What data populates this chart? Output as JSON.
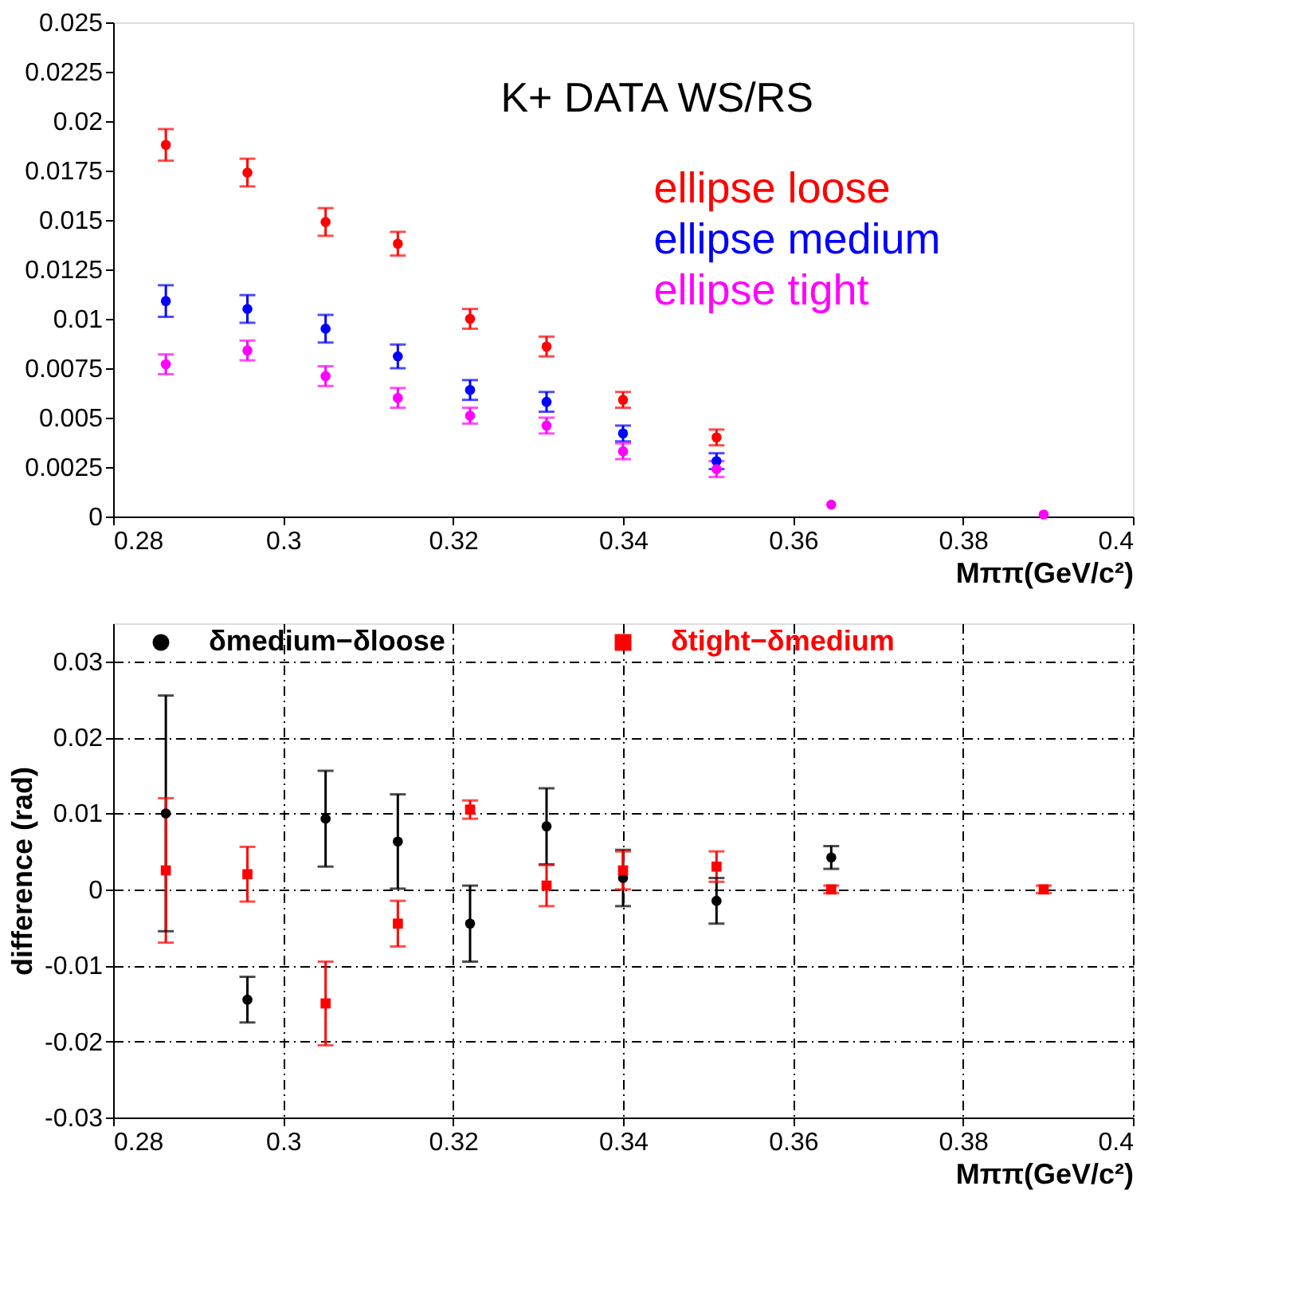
{
  "chart_data": [
    {
      "type": "scatter",
      "annotations": [
        "K+ DATA WS/RS"
      ],
      "xlabel": "Mππ(GeV/c²)",
      "xlim": [
        0.28,
        0.4
      ],
      "xticks": [
        0.28,
        0.3,
        0.32,
        0.34,
        0.36,
        0.38,
        0.4
      ],
      "ylim": [
        0,
        0.025
      ],
      "yticks": [
        0,
        0.0025,
        0.005,
        0.0075,
        0.01,
        0.0125,
        0.015,
        0.0175,
        0.02,
        0.0225,
        0.025
      ],
      "grid": false,
      "legend": "top right",
      "marker": "circle",
      "x": [
        0.2862,
        0.2958,
        0.305,
        0.3135,
        0.322,
        0.331,
        0.34,
        0.351,
        0.3645,
        0.3895
      ],
      "series": [
        {
          "name": "ellipse loose",
          "color": "#ff0000",
          "values": [
            0.0188,
            0.0174,
            0.0149,
            0.0138,
            0.01,
            0.0086,
            0.0059,
            0.004,
            null,
            null
          ],
          "errors": [
            0.0008,
            0.0007,
            0.0007,
            0.0006,
            0.0005,
            0.0005,
            0.0004,
            0.0004,
            null,
            null
          ]
        },
        {
          "name": "ellipse medium",
          "color": "#0000ff",
          "values": [
            0.0109,
            0.0105,
            0.0095,
            0.0081,
            0.0064,
            0.0058,
            0.0042,
            0.0028,
            null,
            null
          ],
          "errors": [
            0.0008,
            0.0007,
            0.0007,
            0.0006,
            0.0005,
            0.0005,
            0.0004,
            0.0004,
            null,
            null
          ]
        },
        {
          "name": "ellipse tight",
          "color": "#ff00ff",
          "values": [
            0.0077,
            0.0084,
            0.0071,
            0.006,
            0.0051,
            0.0046,
            0.0033,
            0.0024,
            0.0006,
            0.0001
          ],
          "errors": [
            0.0005,
            0.0005,
            0.0005,
            0.0005,
            0.0004,
            0.0004,
            0.0004,
            0.0004,
            null,
            null
          ]
        }
      ]
    },
    {
      "type": "scatter",
      "xlabel": "Mππ(GeV/c²)",
      "ylabel": "difference (rad)",
      "xlim": [
        0.28,
        0.4
      ],
      "xticks": [
        0.28,
        0.3,
        0.32,
        0.34,
        0.36,
        0.38,
        0.4
      ],
      "ylim": [
        -0.03,
        0.035
      ],
      "yticks": [
        -0.03,
        -0.02,
        -0.01,
        0,
        0.01,
        0.02,
        0.03
      ],
      "grid": true,
      "legend": "top",
      "x": [
        0.2862,
        0.2958,
        0.305,
        0.3135,
        0.322,
        0.331,
        0.34,
        0.351,
        0.3645,
        0.3895
      ],
      "series": [
        {
          "name": "δmedium−δloose",
          "color": "#000000",
          "marker": "circle",
          "values": [
            0.01,
            -0.0145,
            0.0093,
            0.0063,
            -0.0045,
            0.0083,
            0.0015,
            -0.0015,
            0.0042,
            null
          ],
          "errors": [
            0.0155,
            0.003,
            0.0063,
            0.0062,
            0.005,
            0.005,
            0.0037,
            0.003,
            0.0015,
            null
          ]
        },
        {
          "name": "δtight−δmedium",
          "color": "#ff0000",
          "marker": "square",
          "values": [
            0.0025,
            0.002,
            -0.015,
            -0.0045,
            0.0105,
            0.0005,
            0.0025,
            0.003,
            0.0,
            0.0
          ],
          "errors": [
            0.0095,
            0.0036,
            0.0055,
            0.003,
            0.0012,
            0.0027,
            0.0025,
            0.002,
            0.0005,
            0.0005
          ]
        }
      ]
    }
  ]
}
